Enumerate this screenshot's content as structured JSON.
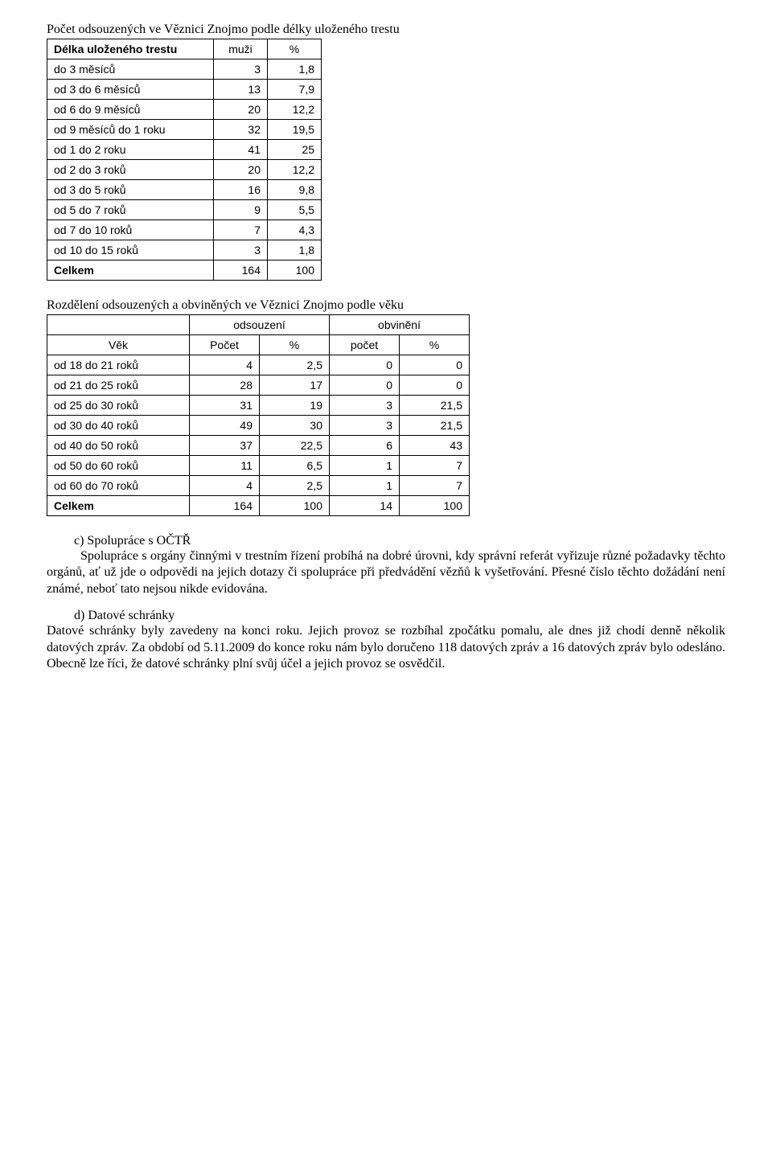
{
  "table1": {
    "title": "Počet odsouzených ve Věznici Znojmo podle délky uloženého trestu",
    "headers": {
      "c1": "Délka uloženého trestu",
      "c2": "muži",
      "c3": "%"
    },
    "rows": [
      {
        "label": "do 3 měsíců",
        "muzi": "3",
        "pct": "1,8"
      },
      {
        "label": "od 3 do 6 měsíců",
        "muzi": "13",
        "pct": "7,9"
      },
      {
        "label": "od 6 do 9 měsíců",
        "muzi": "20",
        "pct": "12,2"
      },
      {
        "label": "od 9 měsíců do 1 roku",
        "muzi": "32",
        "pct": "19,5"
      },
      {
        "label": "od 1 do 2 roku",
        "muzi": "41",
        "pct": "25"
      },
      {
        "label": "od 2 do 3 roků",
        "muzi": "20",
        "pct": "12,2"
      },
      {
        "label": "od 3 do 5 roků",
        "muzi": "16",
        "pct": "9,8"
      },
      {
        "label": "od 5 do 7 roků",
        "muzi": "9",
        "pct": "5,5"
      },
      {
        "label": "od 7 do 10 roků",
        "muzi": "7",
        "pct": "4,3"
      },
      {
        "label": "od 10 do 15 roků",
        "muzi": "3",
        "pct": "1,8"
      }
    ],
    "total": {
      "label": "Celkem",
      "muzi": "164",
      "pct": "100"
    }
  },
  "table2": {
    "title": "Rozdělení odsouzených a obviněných ve Věznici Znojmo podle věku",
    "group_headers": {
      "g1": "odsouzení",
      "g2": "obvinění"
    },
    "headers": {
      "c1": "Věk",
      "c2": "Počet",
      "c3": "%",
      "c4": "počet",
      "c5": "%"
    },
    "rows": [
      {
        "label": "od 18 do 21 roků",
        "a": "4",
        "b": "2,5",
        "c": "0",
        "d": "0"
      },
      {
        "label": "od 21 do 25 roků",
        "a": "28",
        "b": "17",
        "c": "0",
        "d": "0"
      },
      {
        "label": "od 25 do 30 roků",
        "a": "31",
        "b": "19",
        "c": "3",
        "d": "21,5"
      },
      {
        "label": "od 30 do 40 roků",
        "a": "49",
        "b": "30",
        "c": "3",
        "d": "21,5"
      },
      {
        "label": "od 40 do 50 roků",
        "a": "37",
        "b": "22,5",
        "c": "6",
        "d": "43"
      },
      {
        "label": "od 50 do 60 roků",
        "a": "11",
        "b": "6,5",
        "c": "1",
        "d": "7"
      },
      {
        "label": "od 60 do 70 roků",
        "a": "4",
        "b": "2,5",
        "c": "1",
        "d": "7"
      }
    ],
    "total": {
      "label": "Celkem",
      "a": "164",
      "b": "100",
      "c": "14",
      "d": "100"
    }
  },
  "sections": {
    "c": {
      "letter": "c)  Spolupráce s OČTŘ",
      "text": "Spolupráce s orgány činnými v trestním řízení probíhá na dobré úrovni, kdy správní referát vyřizuje různé požadavky těchto orgánů, ať už jde o odpovědi na jejich dotazy či spolupráce při předvádění vězňů k vyšetřování. Přesné číslo těchto dožádání není známé, neboť tato nejsou nikde evidována."
    },
    "d": {
      "letter": "d)  Datové schránky",
      "text": "Datové schránky byly zavedeny na konci roku. Jejich provoz se rozbíhal zpočátku pomalu, ale dnes již chodí denně několik datových zpráv. Za období od 5.11.2009 do konce roku nám bylo doručeno 118 datových zpráv a 16 datových zpráv bylo odesláno. Obecně lze říci, že datové schránky plní svůj účel a jejich provoz se osvědčil."
    }
  }
}
